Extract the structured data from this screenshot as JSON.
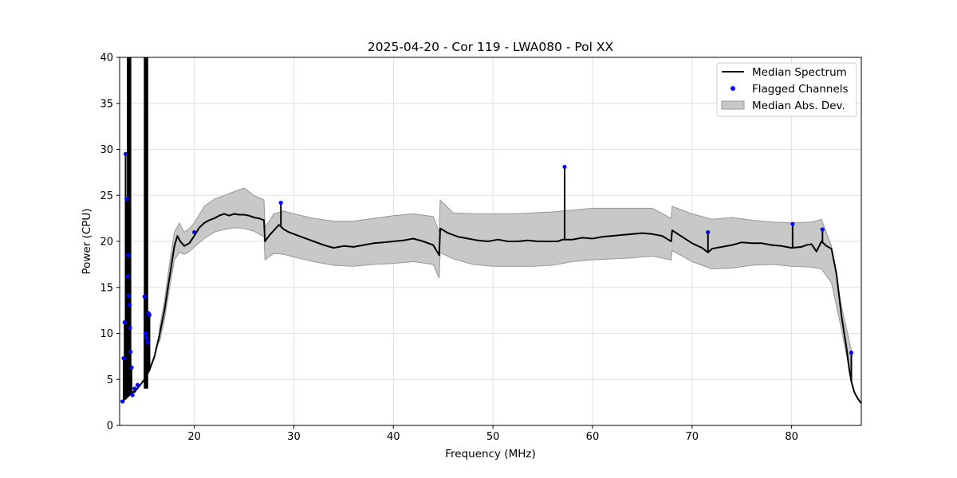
{
  "chart_data": {
    "type": "line",
    "title": "2025-04-20 - Cor 119 - LWA080 - Pol XX",
    "xlabel": "Frequency (MHz)",
    "ylabel": "Power (CPU)",
    "xlim": [
      12.5,
      87.0
    ],
    "ylim": [
      0,
      40
    ],
    "xticks": [
      20,
      30,
      40,
      50,
      60,
      70,
      80
    ],
    "yticks": [
      0,
      5,
      10,
      15,
      20,
      25,
      30,
      35,
      40
    ],
    "grid": true,
    "legend_position": "top-right",
    "colors": {
      "median": "#000000",
      "flagged": "#0000ff",
      "mad_fill": "#c8c8c8",
      "mad_edge": "#969696"
    },
    "series": [
      {
        "name": "Median Spectrum",
        "kind": "line",
        "x": [
          12.6,
          13.0,
          13.3,
          13.5,
          13.7,
          13.9,
          14.0,
          14.2,
          14.5,
          15.0,
          15.5,
          16.0,
          16.5,
          17.0,
          17.5,
          18.0,
          18.3,
          18.6,
          19.0,
          19.5,
          20.0,
          20.5,
          21.0,
          21.5,
          22.0,
          22.5,
          23.0,
          23.5,
          24.0,
          24.5,
          25.0,
          25.5,
          26.0,
          26.5,
          27.0,
          27.1,
          27.5,
          28.0,
          28.5,
          29.0,
          29.5,
          30.0,
          31.0,
          32.0,
          33.0,
          34.0,
          35.0,
          36.0,
          37.0,
          38.0,
          39.0,
          40.0,
          41.0,
          42.0,
          43.0,
          44.0,
          44.6,
          44.7,
          45.5,
          46.5,
          47.5,
          48.5,
          49.5,
          50.5,
          51.5,
          52.5,
          53.5,
          54.5,
          55.5,
          56.5,
          57.0,
          58.0,
          59.0,
          60.0,
          61.0,
          62.0,
          63.0,
          64.0,
          65.0,
          66.0,
          67.0,
          67.9,
          68.0,
          69.0,
          70.0,
          71.0,
          71.6,
          72.0,
          73.0,
          74.0,
          75.0,
          76.0,
          77.0,
          78.0,
          79.0,
          80.0,
          81.0,
          81.5,
          82.0,
          82.5,
          83.0,
          83.5,
          84.0,
          84.5,
          85.0,
          85.5,
          85.8,
          86.0,
          86.3,
          86.6,
          87.0
        ],
        "y": [
          2.6,
          2.8,
          3.1,
          3.3,
          3.5,
          3.7,
          3.6,
          3.9,
          4.3,
          5.0,
          6.0,
          7.5,
          9.8,
          12.5,
          16.0,
          19.5,
          20.6,
          20.0,
          19.5,
          19.8,
          20.6,
          21.5,
          22.0,
          22.3,
          22.5,
          22.8,
          23.0,
          22.8,
          23.0,
          22.9,
          22.9,
          22.8,
          22.6,
          22.5,
          22.3,
          20.0,
          20.6,
          21.2,
          21.8,
          21.3,
          21.0,
          20.8,
          20.4,
          20.0,
          19.6,
          19.3,
          19.5,
          19.4,
          19.6,
          19.8,
          19.9,
          20.0,
          20.1,
          20.3,
          20.0,
          19.6,
          18.5,
          21.4,
          20.9,
          20.5,
          20.3,
          20.1,
          20.0,
          20.2,
          20.0,
          20.0,
          20.1,
          20.0,
          20.0,
          20.0,
          20.2,
          20.2,
          20.4,
          20.3,
          20.5,
          20.6,
          20.7,
          20.8,
          20.9,
          20.8,
          20.6,
          20.0,
          21.2,
          20.5,
          19.8,
          19.3,
          18.8,
          19.2,
          19.4,
          19.6,
          19.9,
          19.8,
          19.8,
          19.6,
          19.5,
          19.3,
          19.4,
          19.6,
          19.7,
          18.9,
          20.0,
          19.5,
          19.2,
          16.5,
          12.0,
          8.5,
          6.0,
          4.8,
          3.6,
          3.0,
          2.4
        ]
      },
      {
        "name": "Flagged Channels",
        "kind": "scatter",
        "x": [
          12.8,
          12.9,
          13.0,
          13.1,
          13.2,
          13.3,
          13.35,
          13.4,
          13.5,
          13.55,
          13.6,
          13.7,
          13.8,
          14.0,
          14.3,
          15.0,
          15.1,
          15.2,
          15.3,
          15.4,
          15.5,
          20.0,
          28.7,
          57.2,
          71.6,
          80.1,
          83.1,
          86.0
        ],
        "y": [
          2.6,
          7.3,
          11.2,
          29.5,
          24.6,
          16.2,
          18.5,
          14.1,
          13.1,
          10.6,
          8.0,
          6.3,
          3.3,
          4.0,
          4.4,
          14.0,
          10.0,
          9.5,
          9.0,
          12.2,
          12.0,
          21.0,
          24.2,
          28.1,
          21.0,
          21.9,
          21.3,
          7.9
        ]
      },
      {
        "name": "Median Abs. Dev.",
        "kind": "band",
        "x": [
          16.5,
          17.0,
          17.5,
          18.0,
          18.5,
          19.0,
          19.5,
          20.0,
          21.0,
          22.0,
          23.0,
          24.0,
          25.0,
          26.0,
          27.0,
          27.1,
          28.0,
          29.0,
          30.0,
          32.0,
          34.0,
          36.0,
          38.0,
          40.0,
          42.0,
          44.0,
          44.6,
          44.7,
          46.0,
          48.0,
          50.0,
          52.0,
          54.0,
          56.0,
          58.0,
          60.0,
          62.0,
          64.0,
          66.0,
          67.9,
          68.0,
          70.0,
          72.0,
          74.0,
          76.0,
          78.0,
          80.0,
          82.0,
          83.0,
          84.0,
          85.0,
          86.0
        ],
        "low": [
          9.0,
          11.5,
          14.8,
          18.0,
          18.8,
          18.6,
          18.9,
          19.4,
          20.3,
          21.0,
          21.3,
          21.5,
          21.4,
          21.1,
          20.5,
          18.0,
          18.7,
          18.6,
          18.3,
          17.8,
          17.4,
          17.3,
          17.5,
          17.6,
          17.8,
          17.5,
          16.0,
          18.8,
          18.1,
          17.5,
          17.3,
          17.3,
          17.3,
          17.4,
          17.8,
          18.0,
          18.1,
          18.2,
          18.4,
          18.0,
          19.0,
          17.8,
          17.0,
          17.1,
          17.4,
          17.5,
          17.3,
          17.2,
          17.0,
          15.5,
          10.5,
          5.0
        ],
        "high": [
          10.5,
          13.5,
          17.5,
          21.0,
          22.0,
          21.0,
          21.4,
          22.0,
          23.8,
          24.6,
          25.0,
          25.4,
          25.8,
          25.0,
          24.5,
          21.5,
          23.0,
          23.3,
          23.0,
          22.5,
          22.2,
          22.2,
          22.5,
          22.8,
          23.0,
          22.7,
          21.0,
          24.5,
          23.1,
          23.0,
          23.0,
          23.0,
          23.1,
          23.2,
          23.4,
          23.6,
          23.6,
          23.6,
          23.6,
          22.5,
          23.8,
          23.0,
          22.4,
          22.6,
          22.3,
          22.1,
          22.0,
          22.1,
          22.4,
          19.5,
          13.0,
          8.2
        ]
      }
    ]
  }
}
